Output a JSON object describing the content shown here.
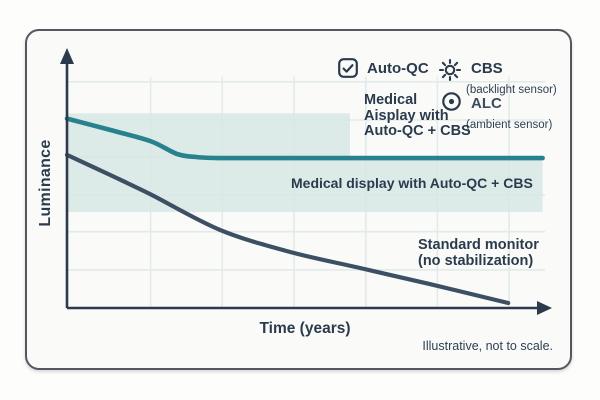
{
  "figure": {
    "y_axis_label": "Luminance",
    "x_axis_label": "Time (years)",
    "band_label": "Medical display with Auto-QC + CBS",
    "standard_label_line1": "Standard monitor",
    "standard_label_line2": "(no stabilization)",
    "footnote": "Illustrative, not to scale."
  },
  "legend": {
    "auto_qc": {
      "icon": "checkbox-check-icon",
      "label": "Auto-QC"
    },
    "cbs": {
      "icon": "sun-icon",
      "label": "CBS",
      "sublabel": "(backlight sensor)"
    },
    "alc": {
      "icon": "circle-dot-icon",
      "label": "ALC",
      "sublabel": "(ambient sensor)"
    },
    "medical_block": {
      "line1": "Medical",
      "line2": "Aisplay with",
      "line3": "Auto-QC + CBS"
    }
  },
  "colors": {
    "teal_line": "#28818e",
    "navy_line": "#3c4f63",
    "band_fill": "#d7e6e4",
    "grid": "#e2ebe9",
    "axis": "#2b3a4d",
    "text": "#2b3b4e",
    "card_background": "#fafbf9",
    "page_background": "#fdfdfc",
    "card_border": "#54585e"
  },
  "chart_data": {
    "type": "line",
    "title": "",
    "xlabel": "Time (years)",
    "ylabel": "Luminance",
    "note": "Illustrative, not to scale.",
    "x_range": [
      0,
      10
    ],
    "y_range": [
      0,
      100
    ],
    "axes_style": "arrow axes, no tick labels (illustrative, not to scale)",
    "grid": {
      "x": [
        1.75,
        3.25,
        4.75,
        6.25,
        7.75,
        9.25
      ],
      "y": [
        14.5,
        29,
        43,
        57.5,
        71.5,
        86
      ],
      "color": "#e2ebe9"
    },
    "band": {
      "label": "Medical display with Auto-QC + CBS",
      "color": "#d7e6e4",
      "opacity": 0.82,
      "polygon": [
        [
          0,
          74
        ],
        [
          5.92,
          74
        ],
        [
          5.92,
          57.5
        ],
        [
          9.95,
          57.5
        ],
        [
          9.95,
          36.5
        ],
        [
          0,
          36.5
        ]
      ]
    },
    "series": [
      {
        "name": "Medical display with Auto-QC + CBS",
        "color": "#28818e",
        "width": 4.6,
        "points": [
          [
            0,
            72
          ],
          [
            0.9,
            67.7
          ],
          [
            1.74,
            63.5
          ],
          [
            2.3,
            58.6
          ],
          [
            2.7,
            57.4
          ],
          [
            3.1,
            57.05
          ],
          [
            4,
            57
          ],
          [
            6,
            57
          ],
          [
            8,
            57
          ],
          [
            9.95,
            57
          ]
        ]
      },
      {
        "name": "Standard monitor (no stabilization)",
        "color": "#3c4f63",
        "width": 4.2,
        "points": [
          [
            0,
            58.2
          ],
          [
            0.9,
            50.6
          ],
          [
            1.74,
            43.3
          ],
          [
            3.2,
            29.7
          ],
          [
            4.67,
            21.3
          ],
          [
            6.13,
            15.2
          ],
          [
            7.59,
            9.1
          ],
          [
            9.23,
            1.9
          ]
        ]
      }
    ],
    "legend_entries": [
      "Auto-QC",
      "CBS (backlight sensor)",
      "ALC (ambient sensor)"
    ]
  }
}
